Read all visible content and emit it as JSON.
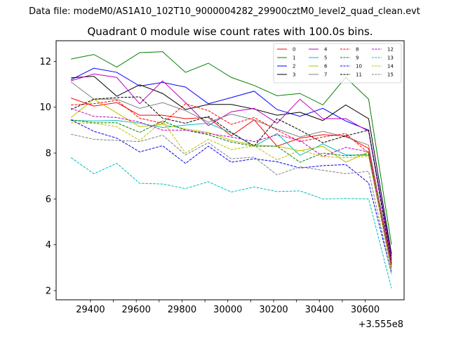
{
  "chart_data": {
    "type": "line",
    "suptitle": "Data file: modeM0/AS1A10_102T10_9000004282_29900cztM0_level2_quad_clean.evt",
    "title": "Quadrant 0 module wise count rates with 100.0s bins.",
    "xlabel": "",
    "ylabel": "",
    "x_offset_label": "+3.555e8",
    "xlim": [
      29250,
      30770
    ],
    "ylim": [
      1.6,
      12.9
    ],
    "xticks": [
      29400,
      29500,
      29600,
      29700,
      29800,
      29900,
      30000,
      30100,
      30200,
      30300,
      30400,
      30500,
      30600
    ],
    "xtick_labels": [
      "29400",
      "29600",
      "29800",
      "30000",
      "30200",
      "30400",
      "30600"
    ],
    "xtick_label_values": [
      29400,
      29600,
      29800,
      30000,
      30200,
      30400,
      30600
    ],
    "yticks": [
      2,
      4,
      6,
      8,
      10,
      12
    ],
    "ytick_labels": [
      "2",
      "4",
      "6",
      "8",
      "10",
      "12"
    ],
    "grid": false,
    "legend_position": "top-right",
    "legend_columns": 4,
    "x": [
      29315,
      29415,
      29515,
      29615,
      29715,
      29815,
      29915,
      30015,
      30115,
      30215,
      30315,
      30415,
      30515,
      30615,
      30715
    ],
    "series": [
      {
        "name": "0",
        "color": "#ff0000",
        "dash": "solid",
        "values": [
          10.4,
          10.05,
          10.2,
          9.65,
          9.65,
          9.5,
          9.55,
          8.75,
          9.45,
          8.3,
          8.65,
          8.8,
          8.75,
          8.2,
          3.3
        ]
      },
      {
        "name": "1",
        "color": "#008000",
        "dash": "solid",
        "values": [
          12.1,
          12.3,
          11.75,
          12.38,
          12.42,
          11.52,
          11.92,
          11.3,
          10.95,
          10.5,
          10.6,
          10.1,
          11.3,
          10.35,
          4.0
        ]
      },
      {
        "name": "2",
        "color": "#0000ff",
        "dash": "solid",
        "values": [
          11.2,
          11.7,
          11.52,
          10.92,
          11.08,
          10.88,
          10.15,
          10.42,
          10.7,
          9.9,
          9.6,
          9.95,
          9.4,
          9.0,
          3.5
        ]
      },
      {
        "name": "3",
        "color": "#000000",
        "dash": "solid",
        "values": [
          11.28,
          11.35,
          10.48,
          10.98,
          10.6,
          9.9,
          10.12,
          10.12,
          9.92,
          9.65,
          9.78,
          9.42,
          10.1,
          9.5,
          3.6
        ]
      },
      {
        "name": "4",
        "color": "#bf00bf",
        "dash": "solid",
        "values": [
          11.15,
          11.45,
          11.3,
          10.15,
          11.15,
          10.2,
          9.2,
          9.8,
          9.95,
          9.3,
          10.35,
          9.5,
          9.5,
          8.95,
          3.4
        ]
      },
      {
        "name": "5",
        "color": "#00bfbf",
        "dash": "solid",
        "values": [
          9.42,
          9.4,
          9.42,
          9.3,
          9.12,
          9.22,
          9.3,
          8.88,
          8.3,
          8.85,
          7.9,
          8.4,
          7.92,
          7.9,
          3.15
        ]
      },
      {
        "name": "6",
        "color": "#bfbf00",
        "dash": "solid",
        "values": [
          9.55,
          10.35,
          9.75,
          9.15,
          9.25,
          9.05,
          8.9,
          8.55,
          8.35,
          8.3,
          8.1,
          8.3,
          7.6,
          8.05,
          3.05
        ]
      },
      {
        "name": "7",
        "color": "#808080",
        "dash": "solid",
        "values": [
          11.1,
          10.35,
          10.35,
          9.95,
          10.2,
          9.85,
          9.35,
          9.7,
          9.45,
          9.05,
          8.7,
          8.95,
          8.7,
          8.35,
          3.15
        ]
      },
      {
        "name": "8",
        "color": "#ff0000",
        "dash": "dashed",
        "values": [
          10.1,
          10.15,
          10.3,
          9.52,
          9.3,
          10.15,
          9.85,
          9.25,
          9.55,
          9.0,
          8.5,
          8.7,
          8.85,
          8.0,
          3.0
        ]
      },
      {
        "name": "9",
        "color": "#008000",
        "dash": "dashed",
        "values": [
          9.45,
          9.32,
          9.32,
          8.9,
          9.4,
          9.0,
          8.8,
          8.48,
          8.3,
          8.3,
          7.6,
          8.0,
          7.88,
          7.95,
          2.85
        ]
      },
      {
        "name": "10",
        "color": "#0000ff",
        "dash": "dashed",
        "values": [
          9.45,
          8.95,
          8.65,
          8.05,
          8.32,
          7.55,
          8.3,
          7.6,
          7.75,
          7.62,
          7.35,
          7.45,
          7.5,
          6.7,
          2.75
        ]
      },
      {
        "name": "11",
        "color": "#000000",
        "dash": "dashed",
        "values": [
          9.9,
          10.35,
          10.42,
          10.45,
          9.52,
          9.3,
          9.6,
          8.9,
          8.3,
          9.5,
          9.0,
          8.45,
          8.75,
          9.0,
          3.2
        ]
      },
      {
        "name": "12",
        "color": "#bf00bf",
        "dash": "dashed",
        "values": [
          9.95,
          9.6,
          9.55,
          9.35,
          9.0,
          9.0,
          8.85,
          8.7,
          8.5,
          8.8,
          8.55,
          7.85,
          8.25,
          8.05,
          3.1
        ]
      },
      {
        "name": "13",
        "color": "#00bfbf",
        "dash": "dashed",
        "values": [
          7.8,
          7.1,
          7.55,
          6.68,
          6.65,
          6.45,
          6.75,
          6.3,
          6.52,
          6.32,
          6.35,
          6.0,
          6.02,
          6.0,
          2.1
        ]
      },
      {
        "name": "14",
        "color": "#bfbf00",
        "dash": "dashed",
        "values": [
          9.32,
          9.3,
          9.15,
          8.55,
          9.4,
          8.0,
          8.6,
          8.15,
          8.32,
          7.7,
          8.12,
          7.85,
          7.8,
          7.85,
          2.9
        ]
      },
      {
        "name": "15",
        "color": "#808080",
        "dash": "dashed",
        "values": [
          8.82,
          8.6,
          8.55,
          8.5,
          8.78,
          7.92,
          8.45,
          7.75,
          7.82,
          7.05,
          7.4,
          7.25,
          7.1,
          7.2,
          2.7
        ]
      }
    ]
  }
}
